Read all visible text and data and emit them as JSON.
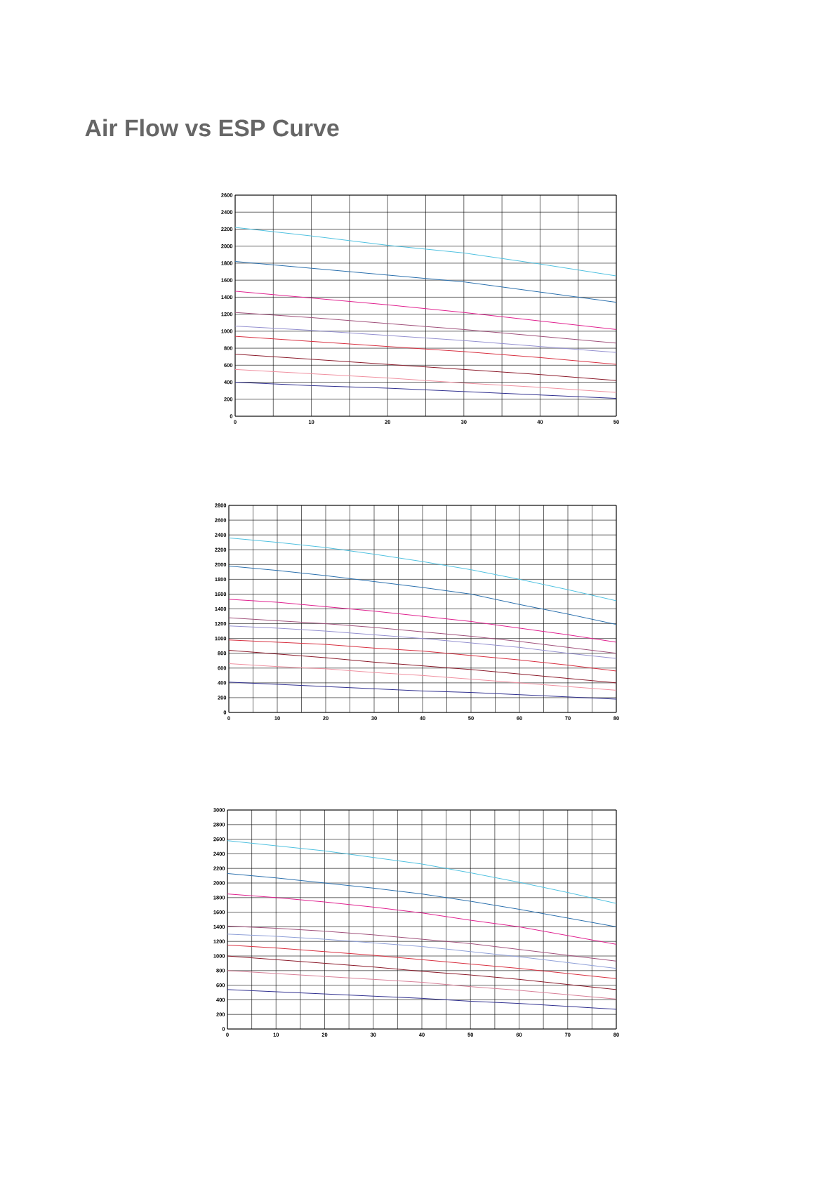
{
  "chart_data": [
    {
      "type": "line",
      "title": "Air Flow vs ESP Curve",
      "grid": true,
      "marker": "none",
      "line_style": "solid",
      "x": [
        0,
        10,
        20,
        30,
        40,
        50
      ],
      "xlim": [
        0,
        50
      ],
      "xticks": [
        0,
        {
          "value": 5,
          "label": null
        },
        10,
        {
          "value": 15,
          "label": null
        },
        20,
        {
          "value": 25,
          "label": null
        },
        30,
        {
          "value": 35,
          "label": null
        },
        40,
        {
          "value": 45,
          "label": null
        },
        50
      ],
      "ylim": [
        0,
        2600
      ],
      "yticks": [
        0,
        200,
        400,
        600,
        800,
        1000,
        1200,
        1400,
        1600,
        1800,
        2000,
        2200,
        2400,
        2600
      ],
      "series": [
        {
          "color": "#4fc1e0",
          "values": [
            2220,
            2120,
            2010,
            1920,
            1790,
            1650
          ]
        },
        {
          "color": "#2a6fad",
          "values": [
            1820,
            1740,
            1660,
            1580,
            1460,
            1340
          ]
        },
        {
          "color": "#e0208f",
          "values": [
            1470,
            1390,
            1310,
            1220,
            1120,
            1020
          ]
        },
        {
          "color": "#a0507a",
          "values": [
            1220,
            1160,
            1090,
            1020,
            940,
            860
          ]
        },
        {
          "color": "#9490d0",
          "values": [
            1060,
            1010,
            950,
            890,
            820,
            750
          ]
        },
        {
          "color": "#d83040",
          "values": [
            940,
            880,
            820,
            760,
            690,
            610
          ]
        },
        {
          "color": "#8b1a2a",
          "values": [
            730,
            670,
            610,
            550,
            490,
            420
          ]
        },
        {
          "color": "#f090a0",
          "values": [
            550,
            500,
            450,
            390,
            340,
            280
          ]
        },
        {
          "color": "#303090",
          "values": [
            400,
            360,
            330,
            290,
            250,
            210
          ]
        }
      ]
    },
    {
      "type": "line",
      "grid": true,
      "marker": "none",
      "line_style": "solid",
      "x": [
        0,
        10,
        20,
        30,
        40,
        50,
        60,
        70,
        80
      ],
      "xlim": [
        0,
        80
      ],
      "xticks": [
        0,
        {
          "value": 5,
          "label": null
        },
        10,
        {
          "value": 15,
          "label": null
        },
        20,
        {
          "value": 25,
          "label": null
        },
        30,
        {
          "value": 35,
          "label": null
        },
        40,
        {
          "value": 45,
          "label": null
        },
        50,
        {
          "value": 55,
          "label": null
        },
        60,
        {
          "value": 65,
          "label": null
        },
        70,
        {
          "value": 75,
          "label": null
        },
        80
      ],
      "ylim": [
        0,
        2800
      ],
      "yticks": [
        0,
        200,
        400,
        600,
        800,
        1000,
        1200,
        1400,
        1600,
        1800,
        2000,
        2200,
        2400,
        2600,
        2800
      ],
      "series": [
        {
          "color": "#4fc1e0",
          "values": [
            2360,
            2300,
            2230,
            2140,
            2040,
            1930,
            1800,
            1660,
            1510
          ]
        },
        {
          "color": "#2a6fad",
          "values": [
            1980,
            1920,
            1850,
            1770,
            1690,
            1600,
            1460,
            1330,
            1190
          ]
        },
        {
          "color": "#e0208f",
          "values": [
            1530,
            1490,
            1430,
            1370,
            1300,
            1230,
            1140,
            1050,
            950
          ]
        },
        {
          "color": "#a0507a",
          "values": [
            1280,
            1240,
            1200,
            1150,
            1090,
            1030,
            960,
            880,
            800
          ]
        },
        {
          "color": "#9490d0",
          "values": [
            1170,
            1140,
            1100,
            1050,
            1000,
            940,
            880,
            800,
            730
          ]
        },
        {
          "color": "#d83040",
          "values": [
            980,
            950,
            920,
            870,
            830,
            770,
            710,
            640,
            560
          ]
        },
        {
          "color": "#8b1a2a",
          "values": [
            840,
            790,
            740,
            680,
            630,
            580,
            520,
            460,
            400
          ]
        },
        {
          "color": "#f090a0",
          "values": [
            660,
            620,
            590,
            540,
            500,
            450,
            400,
            350,
            300
          ]
        },
        {
          "color": "#303090",
          "values": [
            410,
            380,
            350,
            320,
            290,
            270,
            240,
            210,
            180
          ]
        }
      ]
    },
    {
      "type": "line",
      "grid": true,
      "marker": "none",
      "line_style": "solid",
      "x": [
        0,
        10,
        20,
        30,
        40,
        50,
        60,
        70,
        80
      ],
      "xlim": [
        0,
        80
      ],
      "xticks": [
        0,
        {
          "value": 5,
          "label": null
        },
        10,
        {
          "value": 15,
          "label": null
        },
        20,
        {
          "value": 25,
          "label": null
        },
        30,
        {
          "value": 35,
          "label": null
        },
        40,
        {
          "value": 45,
          "label": null
        },
        50,
        {
          "value": 55,
          "label": null
        },
        60,
        {
          "value": 65,
          "label": null
        },
        70,
        {
          "value": 75,
          "label": null
        },
        80
      ],
      "ylim": [
        0,
        3000
      ],
      "yticks": [
        0,
        200,
        400,
        600,
        800,
        1000,
        1200,
        1400,
        1600,
        1800,
        2000,
        2200,
        2400,
        2600,
        2800,
        3000
      ],
      "series": [
        {
          "color": "#4fc1e0",
          "values": [
            2580,
            2510,
            2440,
            2350,
            2260,
            2140,
            2010,
            1870,
            1720
          ]
        },
        {
          "color": "#2a6fad",
          "values": [
            2130,
            2070,
            2000,
            1930,
            1850,
            1750,
            1640,
            1520,
            1400
          ]
        },
        {
          "color": "#e0208f",
          "values": [
            1850,
            1800,
            1740,
            1670,
            1590,
            1490,
            1400,
            1280,
            1160
          ]
        },
        {
          "color": "#a0507a",
          "values": [
            1410,
            1380,
            1340,
            1290,
            1230,
            1170,
            1090,
            1010,
            930
          ]
        },
        {
          "color": "#8fa0d8",
          "values": [
            1300,
            1270,
            1230,
            1180,
            1130,
            1060,
            990,
            910,
            830
          ]
        },
        {
          "color": "#d83040",
          "values": [
            1150,
            1110,
            1060,
            1010,
            950,
            890,
            830,
            760,
            690
          ]
        },
        {
          "color": "#8b1a2a",
          "values": [
            1000,
            950,
            900,
            850,
            790,
            740,
            680,
            610,
            540
          ]
        },
        {
          "color": "#d88098",
          "values": [
            800,
            760,
            720,
            680,
            640,
            580,
            530,
            470,
            410
          ]
        },
        {
          "color": "#303090",
          "values": [
            540,
            510,
            480,
            450,
            420,
            380,
            350,
            310,
            270
          ]
        }
      ]
    }
  ]
}
